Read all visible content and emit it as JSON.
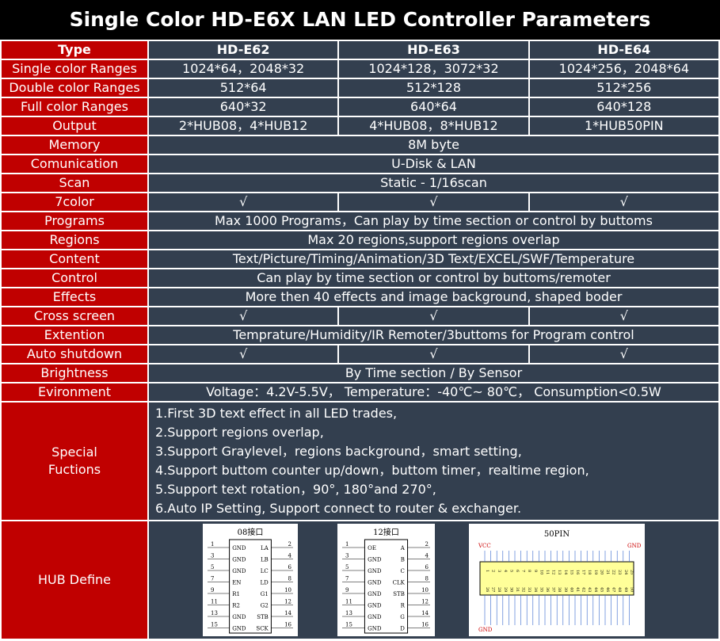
{
  "header": {
    "title": "Single Color HD-E6X LAN LED Controller Parameters"
  },
  "table": {
    "header": {
      "label": "Type",
      "cells": [
        "HD-E62",
        "HD-E63",
        "HD-E64"
      ]
    },
    "rows": [
      {
        "label": "Single color Ranges",
        "cells": [
          "1024*64，2048*32",
          "1024*128，3072*32",
          "1024*256，2048*64"
        ]
      },
      {
        "label": "Double color Ranges",
        "cells": [
          "512*64",
          "512*128",
          "512*256"
        ]
      },
      {
        "label": "Full color Ranges",
        "cells": [
          "640*32",
          "640*64",
          "640*128"
        ]
      },
      {
        "label": "Output",
        "cells": [
          "2*HUB08，4*HUB12",
          "4*HUB08，8*HUB12",
          "1*HUB50PIN"
        ]
      },
      {
        "label": "Memory",
        "cells": [
          "8M byte"
        ]
      },
      {
        "label": "Comunication",
        "cells": [
          "U-Disk & LAN"
        ]
      },
      {
        "label": "Scan",
        "cells": [
          "Static - 1/16scan"
        ]
      },
      {
        "label": "7color",
        "cells": [
          "√",
          "√",
          "√"
        ]
      },
      {
        "label": "Programs",
        "cells": [
          "Max 1000 Programs，Can play by time section or control by buttoms"
        ]
      },
      {
        "label": "Regions",
        "cells": [
          "Max 20 regions,support regions overlap"
        ]
      },
      {
        "label": "Content",
        "cells": [
          "Text/Picture/Timing/Animation/3D Text/EXCEL/SWF/Temperature"
        ]
      },
      {
        "label": "Control",
        "cells": [
          "Can play by time section or control by buttoms/remoter"
        ]
      },
      {
        "label": "Effects",
        "cells": [
          "More then 40 effects and image background, shaped boder"
        ]
      },
      {
        "label": "Cross screen",
        "cells": [
          "√",
          "√",
          "√"
        ]
      },
      {
        "label": "Extention",
        "cells": [
          "Temprature/Humidity/IR Remoter/3buttoms for Program control"
        ]
      },
      {
        "label": "Auto shutdown",
        "cells": [
          "√",
          "√",
          "√"
        ]
      },
      {
        "label": "Brightness",
        "cells": [
          "By Time section / By Sensor"
        ]
      },
      {
        "label": "Evironment",
        "cells": [
          "Voltage：4.2V-5.5V，  Temperature：-40℃~ 80℃，  Consumption<0.5W"
        ]
      }
    ],
    "special": {
      "label": [
        "Special",
        "Fuctions"
      ],
      "items": [
        "1.First 3D text effect in all LED trades,",
        "2.Support regions overlap,",
        "3.Support Graylevel，regions background，smart setting,",
        "4.Support buttom counter up/down，buttom timer，realtime region,",
        "5.Support text rotation，90°, 180°and 270°,",
        "6.Auto IP Setting, Support connect to router & exchanger."
      ]
    },
    "hub": {
      "label": "HUB Define",
      "hub08": {
        "title": "08接口",
        "rows": [
          {
            "left": 1,
            "left_label": "GND",
            "right_label": "LA",
            "right": 2
          },
          {
            "left": 3,
            "left_label": "GND",
            "right_label": "LB",
            "right": 4
          },
          {
            "left": 5,
            "left_label": "GND",
            "right_label": "LC",
            "right": 6
          },
          {
            "left": 7,
            "left_label": "EN",
            "right_label": "LD",
            "right": 8
          },
          {
            "left": 9,
            "left_label": "R1",
            "right_label": "G1",
            "right": 10
          },
          {
            "left": 11,
            "left_label": "R2",
            "right_label": "G2",
            "right": 12
          },
          {
            "left": 13,
            "left_label": "GND",
            "right_label": "STB",
            "right": 14
          },
          {
            "left": 15,
            "left_label": "GND",
            "right_label": "SCK",
            "right": 16
          }
        ]
      },
      "hub12": {
        "title": "12接口",
        "rows": [
          {
            "left": 1,
            "left_label": "OE",
            "right_label": "A",
            "right": 2
          },
          {
            "left": 3,
            "left_label": "GND",
            "right_label": "B",
            "right": 4
          },
          {
            "left": 5,
            "left_label": "GND",
            "right_label": "C",
            "right": 6
          },
          {
            "left": 7,
            "left_label": "GND",
            "right_label": "CLK",
            "right": 8
          },
          {
            "left": 9,
            "left_label": "GND",
            "right_label": "STB",
            "right": 10
          },
          {
            "left": 11,
            "left_label": "GND",
            "right_label": "R",
            "right": 12
          },
          {
            "left": 13,
            "left_label": "GND",
            "right_label": "G",
            "right": 14
          },
          {
            "left": 15,
            "left_label": "GND",
            "right_label": "D",
            "right": 16
          }
        ]
      },
      "hub50": {
        "title": "50PIN",
        "vcc": "VCC",
        "gnd_top": "GND",
        "gnd_bottom": "GND",
        "pins": [
          1,
          2,
          3,
          4,
          5,
          6,
          7,
          8,
          9,
          10,
          11,
          12,
          13,
          14,
          15,
          16,
          17,
          18,
          19,
          20,
          21,
          22,
          23,
          24,
          25,
          26,
          27,
          28,
          29,
          30,
          31,
          32,
          33,
          34,
          35,
          36,
          37,
          38,
          39,
          40,
          41,
          42,
          43,
          44,
          45,
          46,
          47,
          48,
          49,
          50
        ]
      }
    }
  }
}
